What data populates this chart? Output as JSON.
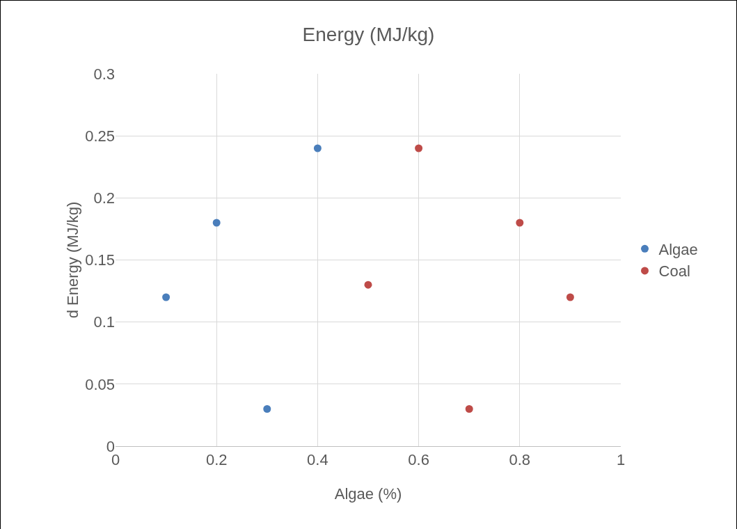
{
  "chart_data": {
    "type": "scatter",
    "title": "Energy (MJ/kg)",
    "xlabel": "Algae (%)",
    "ylabel": "d Energy (MJ/kg)",
    "series": [
      {
        "name": "Algae",
        "color": "#4a7ebb",
        "x": [
          0.1,
          0.2,
          0.3,
          0.4
        ],
        "values": [
          0.12,
          0.18,
          0.03,
          0.24
        ]
      },
      {
        "name": "Coal",
        "color": "#be4b48",
        "x": [
          0.5,
          0.6,
          0.7,
          0.8,
          0.9
        ],
        "values": [
          0.13,
          0.24,
          0.03,
          0.18,
          0.12
        ]
      }
    ],
    "xlim": [
      0,
      1
    ],
    "xticks": [
      0,
      0.2,
      0.4,
      0.6,
      0.8,
      1
    ],
    "ylim": [
      0,
      0.3
    ],
    "yticks": [
      0,
      0.05,
      0.1,
      0.15,
      0.2,
      0.25,
      0.3
    ],
    "grid": true,
    "legend": "right",
    "marker": "circle"
  }
}
